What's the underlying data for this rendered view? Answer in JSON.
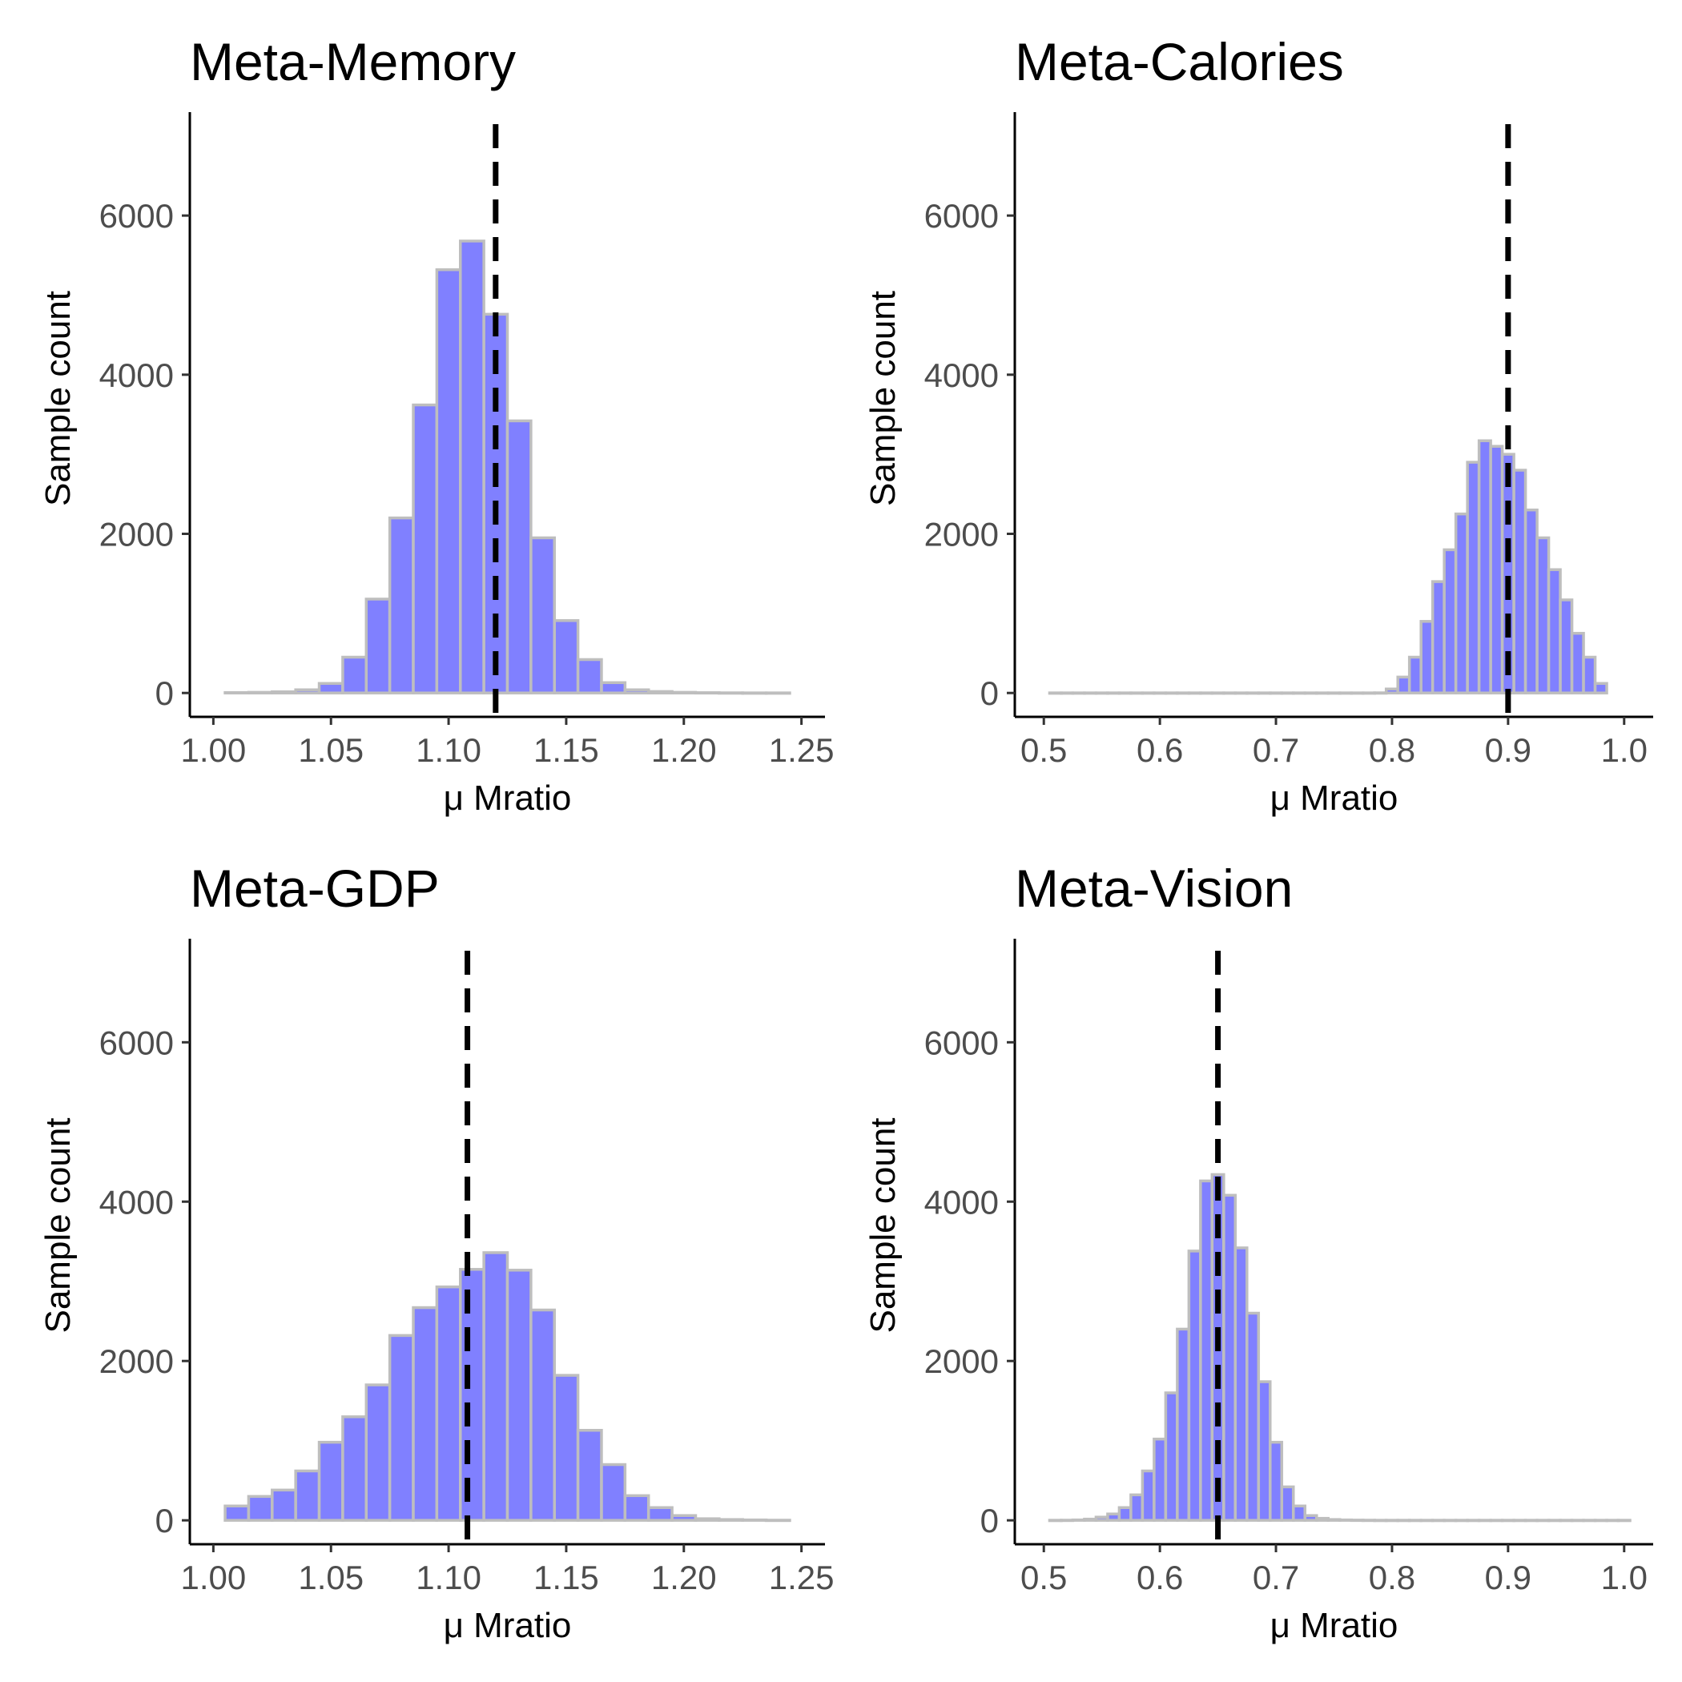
{
  "chart_data": [
    {
      "type": "bar",
      "title": "Meta-Memory",
      "xlabel": "μ Mratio",
      "ylabel": "Sample count",
      "xlim": [
        0.99,
        1.26
      ],
      "ylim": [
        -300,
        7300
      ],
      "xticks": [
        1.0,
        1.05,
        1.1,
        1.15,
        1.2,
        1.25
      ],
      "xtick_labels": [
        "1.00",
        "1.05",
        "1.10",
        "1.15",
        "1.20",
        "1.25"
      ],
      "yticks": [
        0,
        2000,
        4000,
        6000
      ],
      "ytick_labels": [
        "0",
        "2000",
        "4000",
        "6000"
      ],
      "grid": false,
      "bar_color": "#8080ff",
      "bar_outline": "#bebebe",
      "bins": {
        "start": 1.005,
        "width": 0.01,
        "counts": [
          5,
          8,
          15,
          40,
          120,
          450,
          1180,
          2200,
          3620,
          5320,
          5680,
          4760,
          3420,
          1950,
          910,
          420,
          130,
          40,
          18,
          8,
          4,
          2,
          1,
          1
        ]
      },
      "reference_line": 1.12
    },
    {
      "type": "bar",
      "title": "Meta-Calories",
      "xlabel": "μ Mratio",
      "ylabel": "Sample count",
      "xlim": [
        0.475,
        1.025
      ],
      "ylim": [
        -300,
        7300
      ],
      "xticks": [
        0.5,
        0.6,
        0.7,
        0.8,
        0.9,
        1.0
      ],
      "xtick_labels": [
        "0.5",
        "0.6",
        "0.7",
        "0.8",
        "0.9",
        "1.0"
      ],
      "yticks": [
        0,
        2000,
        4000,
        6000
      ],
      "ytick_labels": [
        "0",
        "2000",
        "4000",
        "6000"
      ],
      "grid": false,
      "bar_color": "#8080ff",
      "bar_outline": "#bebebe",
      "bins": {
        "start": 0.505,
        "width": 0.01,
        "counts": [
          1,
          1,
          1,
          1,
          1,
          1,
          1,
          1,
          1,
          1,
          1,
          1,
          1,
          1,
          1,
          1,
          1,
          1,
          1,
          1,
          1,
          1,
          1,
          1,
          1,
          1,
          1,
          1,
          2,
          50,
          200,
          450,
          900,
          1400,
          1800,
          2250,
          2900,
          3170,
          3100,
          3000,
          2800,
          2300,
          1950,
          1550,
          1170,
          750,
          450,
          120
        ]
      },
      "reference_line": 0.9
    },
    {
      "type": "bar",
      "title": "Meta-GDP",
      "xlabel": "μ Mratio",
      "ylabel": "Sample count",
      "xlim": [
        0.99,
        1.26
      ],
      "ylim": [
        -300,
        7300
      ],
      "xticks": [
        1.0,
        1.05,
        1.1,
        1.15,
        1.2,
        1.25
      ],
      "xtick_labels": [
        "1.00",
        "1.05",
        "1.10",
        "1.15",
        "1.20",
        "1.25"
      ],
      "yticks": [
        0,
        2000,
        4000,
        6000
      ],
      "ytick_labels": [
        "0",
        "2000",
        "4000",
        "6000"
      ],
      "grid": false,
      "bar_color": "#8080ff",
      "bar_outline": "#bebebe",
      "bins": {
        "start": 1.005,
        "width": 0.01,
        "counts": [
          180,
          300,
          380,
          620,
          980,
          1300,
          1700,
          2320,
          2670,
          2930,
          3150,
          3360,
          3140,
          2640,
          1820,
          1130,
          700,
          310,
          160,
          60,
          20,
          10,
          5,
          2
        ]
      },
      "reference_line": 1.108
    },
    {
      "type": "bar",
      "title": "Meta-Vision",
      "xlabel": "μ Mratio",
      "ylabel": "Sample count",
      "xlim": [
        0.475,
        1.025
      ],
      "ylim": [
        -300,
        7300
      ],
      "xticks": [
        0.5,
        0.6,
        0.7,
        0.8,
        0.9,
        1.0
      ],
      "xtick_labels": [
        "0.5",
        "0.6",
        "0.7",
        "0.8",
        "0.9",
        "1.0"
      ],
      "yticks": [
        0,
        2000,
        4000,
        6000
      ],
      "ytick_labels": [
        "0",
        "2000",
        "4000",
        "6000"
      ],
      "grid": false,
      "bar_color": "#8080ff",
      "bar_outline": "#bebebe",
      "bins": {
        "start": 0.505,
        "width": 0.01,
        "counts": [
          1,
          2,
          5,
          15,
          40,
          80,
          160,
          320,
          620,
          1020,
          1600,
          2400,
          3380,
          4260,
          4340,
          4080,
          3420,
          2600,
          1740,
          980,
          420,
          180,
          60,
          25,
          10,
          5,
          3,
          2,
          1,
          1,
          1,
          1,
          1,
          1,
          1,
          1,
          1,
          1,
          1,
          1,
          1,
          1,
          1,
          1,
          1,
          1,
          1,
          1,
          1,
          1
        ]
      },
      "reference_line": 0.65
    }
  ]
}
